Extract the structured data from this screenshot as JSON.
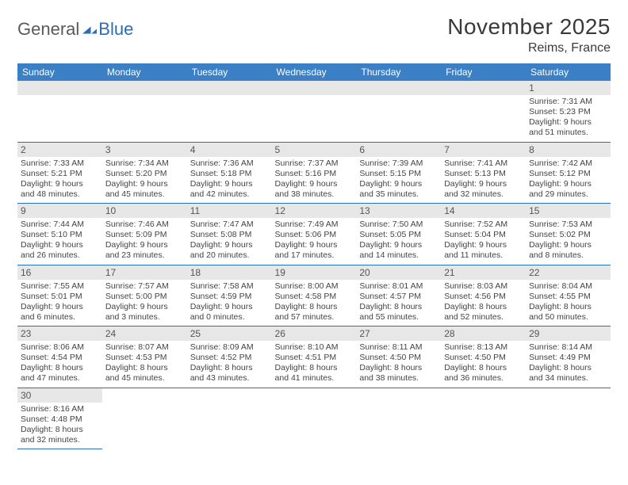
{
  "logo": {
    "text_general": "General",
    "text_blue": "Blue",
    "flag_color": "#2a6db8"
  },
  "title": "November 2025",
  "location": "Reims, France",
  "colors": {
    "header_bg": "#3b7fc4",
    "header_text": "#ffffff",
    "daynum_bg": "#e7e7e7",
    "daynum_text": "#555555",
    "border": "#2a6db8",
    "body_text": "#444444"
  },
  "day_headers": [
    "Sunday",
    "Monday",
    "Tuesday",
    "Wednesday",
    "Thursday",
    "Friday",
    "Saturday"
  ],
  "weeks": [
    [
      null,
      null,
      null,
      null,
      null,
      null,
      {
        "n": "1",
        "sr": "7:31 AM",
        "ss": "5:23 PM",
        "dl": "9 hours and 51 minutes."
      }
    ],
    [
      {
        "n": "2",
        "sr": "7:33 AM",
        "ss": "5:21 PM",
        "dl": "9 hours and 48 minutes."
      },
      {
        "n": "3",
        "sr": "7:34 AM",
        "ss": "5:20 PM",
        "dl": "9 hours and 45 minutes."
      },
      {
        "n": "4",
        "sr": "7:36 AM",
        "ss": "5:18 PM",
        "dl": "9 hours and 42 minutes."
      },
      {
        "n": "5",
        "sr": "7:37 AM",
        "ss": "5:16 PM",
        "dl": "9 hours and 38 minutes."
      },
      {
        "n": "6",
        "sr": "7:39 AM",
        "ss": "5:15 PM",
        "dl": "9 hours and 35 minutes."
      },
      {
        "n": "7",
        "sr": "7:41 AM",
        "ss": "5:13 PM",
        "dl": "9 hours and 32 minutes."
      },
      {
        "n": "8",
        "sr": "7:42 AM",
        "ss": "5:12 PM",
        "dl": "9 hours and 29 minutes."
      }
    ],
    [
      {
        "n": "9",
        "sr": "7:44 AM",
        "ss": "5:10 PM",
        "dl": "9 hours and 26 minutes."
      },
      {
        "n": "10",
        "sr": "7:46 AM",
        "ss": "5:09 PM",
        "dl": "9 hours and 23 minutes."
      },
      {
        "n": "11",
        "sr": "7:47 AM",
        "ss": "5:08 PM",
        "dl": "9 hours and 20 minutes."
      },
      {
        "n": "12",
        "sr": "7:49 AM",
        "ss": "5:06 PM",
        "dl": "9 hours and 17 minutes."
      },
      {
        "n": "13",
        "sr": "7:50 AM",
        "ss": "5:05 PM",
        "dl": "9 hours and 14 minutes."
      },
      {
        "n": "14",
        "sr": "7:52 AM",
        "ss": "5:04 PM",
        "dl": "9 hours and 11 minutes."
      },
      {
        "n": "15",
        "sr": "7:53 AM",
        "ss": "5:02 PM",
        "dl": "9 hours and 8 minutes."
      }
    ],
    [
      {
        "n": "16",
        "sr": "7:55 AM",
        "ss": "5:01 PM",
        "dl": "9 hours and 6 minutes."
      },
      {
        "n": "17",
        "sr": "7:57 AM",
        "ss": "5:00 PM",
        "dl": "9 hours and 3 minutes."
      },
      {
        "n": "18",
        "sr": "7:58 AM",
        "ss": "4:59 PM",
        "dl": "9 hours and 0 minutes."
      },
      {
        "n": "19",
        "sr": "8:00 AM",
        "ss": "4:58 PM",
        "dl": "8 hours and 57 minutes."
      },
      {
        "n": "20",
        "sr": "8:01 AM",
        "ss": "4:57 PM",
        "dl": "8 hours and 55 minutes."
      },
      {
        "n": "21",
        "sr": "8:03 AM",
        "ss": "4:56 PM",
        "dl": "8 hours and 52 minutes."
      },
      {
        "n": "22",
        "sr": "8:04 AM",
        "ss": "4:55 PM",
        "dl": "8 hours and 50 minutes."
      }
    ],
    [
      {
        "n": "23",
        "sr": "8:06 AM",
        "ss": "4:54 PM",
        "dl": "8 hours and 47 minutes."
      },
      {
        "n": "24",
        "sr": "8:07 AM",
        "ss": "4:53 PM",
        "dl": "8 hours and 45 minutes."
      },
      {
        "n": "25",
        "sr": "8:09 AM",
        "ss": "4:52 PM",
        "dl": "8 hours and 43 minutes."
      },
      {
        "n": "26",
        "sr": "8:10 AM",
        "ss": "4:51 PM",
        "dl": "8 hours and 41 minutes."
      },
      {
        "n": "27",
        "sr": "8:11 AM",
        "ss": "4:50 PM",
        "dl": "8 hours and 38 minutes."
      },
      {
        "n": "28",
        "sr": "8:13 AM",
        "ss": "4:50 PM",
        "dl": "8 hours and 36 minutes."
      },
      {
        "n": "29",
        "sr": "8:14 AM",
        "ss": "4:49 PM",
        "dl": "8 hours and 34 minutes."
      }
    ],
    [
      {
        "n": "30",
        "sr": "8:16 AM",
        "ss": "4:48 PM",
        "dl": "8 hours and 32 minutes."
      },
      null,
      null,
      null,
      null,
      null,
      null
    ]
  ],
  "labels": {
    "sunrise": "Sunrise:",
    "sunset": "Sunset:",
    "daylight": "Daylight:"
  }
}
